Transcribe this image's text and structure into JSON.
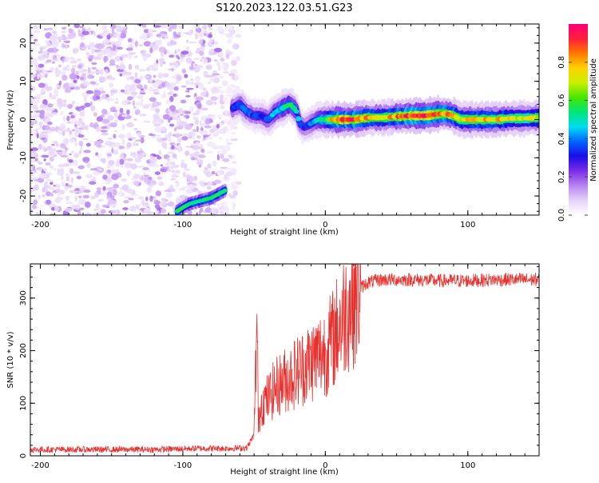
{
  "title": "S120.2023.122.03.51.G23",
  "chart_data": [
    {
      "type": "heatmap",
      "xlabel": "Height of straight line (km)",
      "ylabel": "Frequency (Hz)",
      "xlim": [
        -207,
        150
      ],
      "ylim": [
        -25,
        25
      ],
      "x_ticks": [
        -200,
        -100,
        0,
        100
      ],
      "y_ticks": [
        -20,
        -10,
        0,
        10,
        20
      ],
      "colorbar": {
        "label": "Normalized spectral amplitude",
        "range": [
          0,
          1
        ],
        "ticks": [
          0.0,
          0.2,
          0.4,
          0.6,
          0.8
        ],
        "tick_labels": [
          "0.0",
          "0.2",
          "0.4",
          "0.6",
          "0.8"
        ],
        "colormap": [
          "#ffffff",
          "#e6d2fa",
          "#b884f0",
          "#7a2ee6",
          "#1a0de6",
          "#0064ff",
          "#00dcf0",
          "#00e678",
          "#46e600",
          "#c8f000",
          "#ffd200",
          "#ff7800",
          "#ff1e3c",
          "#ff0078"
        ]
      },
      "noise_region": {
        "x_range": [
          -207,
          -65
        ],
        "freq_range": [
          -25,
          25
        ]
      },
      "ridge": {
        "x": [
          -65,
          -60,
          -55,
          -50,
          -45,
          -40,
          -35,
          -30,
          -25,
          -22,
          -20,
          -18,
          -15,
          -12,
          -10,
          -5,
          0,
          10,
          20,
          30,
          40,
          50,
          60,
          70,
          80,
          85,
          90,
          95,
          100,
          110,
          120,
          130,
          140,
          150
        ],
        "freq": [
          3,
          4,
          2,
          1,
          1,
          0,
          2,
          3,
          4,
          3,
          2,
          -1,
          -2,
          -1.5,
          -1,
          0,
          0,
          0,
          0,
          0.5,
          0.5,
          0.8,
          1,
          1,
          1.5,
          1.5,
          1,
          0,
          0,
          0,
          0,
          0.3,
          0.3,
          0.5
        ],
        "amplitude": [
          0.35,
          0.4,
          0.4,
          0.35,
          0.35,
          0.4,
          0.45,
          0.5,
          0.55,
          0.55,
          0.45,
          0.4,
          0.35,
          0.35,
          0.4,
          0.5,
          0.6,
          0.95,
          0.9,
          0.8,
          0.7,
          0.85,
          0.95,
          0.95,
          0.85,
          0.9,
          0.85,
          0.7,
          0.75,
          0.8,
          0.8,
          0.75,
          0.7,
          0.75
        ]
      },
      "alias_band": {
        "x": [
          -104,
          -100,
          -95,
          -90,
          -85,
          -80,
          -75,
          -70
        ],
        "freq": [
          -24,
          -23,
          -22,
          -21.5,
          -21,
          -20.5,
          -19.5,
          -18.5
        ]
      }
    },
    {
      "type": "line",
      "xlabel": "Height of straight line (km)",
      "ylabel": "SNR (10 * v/v)",
      "xlim": [
        -207,
        150
      ],
      "ylim": [
        0,
        365
      ],
      "x_ticks": [
        -200,
        -100,
        0,
        100
      ],
      "y_ticks": [
        0,
        100,
        200,
        300
      ],
      "color": "#e8302d",
      "series": [
        {
          "x": [
            -207,
            -180,
            -150,
            -120,
            -90,
            -70,
            -55,
            -50,
            -48,
            -47,
            -45,
            -40,
            -35,
            -30,
            -25,
            -20,
            -15,
            -10,
            -5,
            0,
            5,
            10,
            15,
            20,
            25,
            30,
            40,
            50,
            60,
            80,
            100,
            120,
            140,
            150
          ],
          "values": [
            12,
            12,
            12,
            12,
            14,
            14,
            15,
            40,
            270,
            60,
            100,
            110,
            130,
            140,
            150,
            160,
            170,
            180,
            190,
            200,
            220,
            250,
            280,
            300,
            320,
            330,
            335,
            335,
            335,
            333,
            333,
            335,
            335,
            335
          ]
        }
      ]
    }
  ]
}
